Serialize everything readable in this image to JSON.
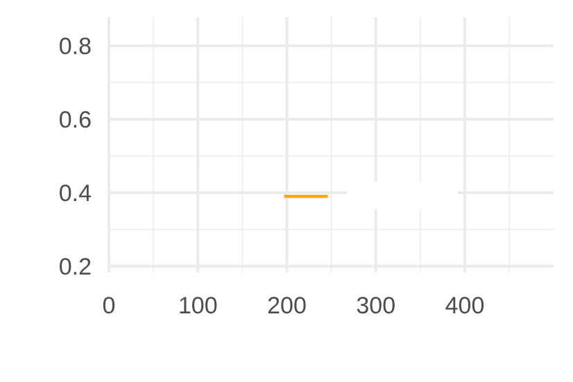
{
  "chart_data": {
    "type": "line",
    "title": "",
    "xlabel": "",
    "ylabel": "",
    "xlim": [
      0,
      500
    ],
    "ylim": [
      0.19,
      0.87
    ],
    "x_ticks": [
      0,
      100,
      200,
      300,
      400
    ],
    "x_tick_labels": [
      "0",
      "100",
      "200",
      "300",
      "400"
    ],
    "x_minor_ticks": [
      50,
      150,
      250,
      350,
      450
    ],
    "y_ticks": [
      0.2,
      0.4,
      0.6,
      0.8
    ],
    "y_tick_labels": [
      "0.2",
      "0.4",
      "0.6",
      "0.8"
    ],
    "y_minor_ticks": [
      0.3,
      0.5,
      0.7
    ],
    "grid": true,
    "legend_position": "center",
    "series": [
      {
        "color": "#f5a800",
        "x": [
          197,
          246
        ],
        "y": [
          0.39,
          0.39
        ]
      }
    ]
  }
}
